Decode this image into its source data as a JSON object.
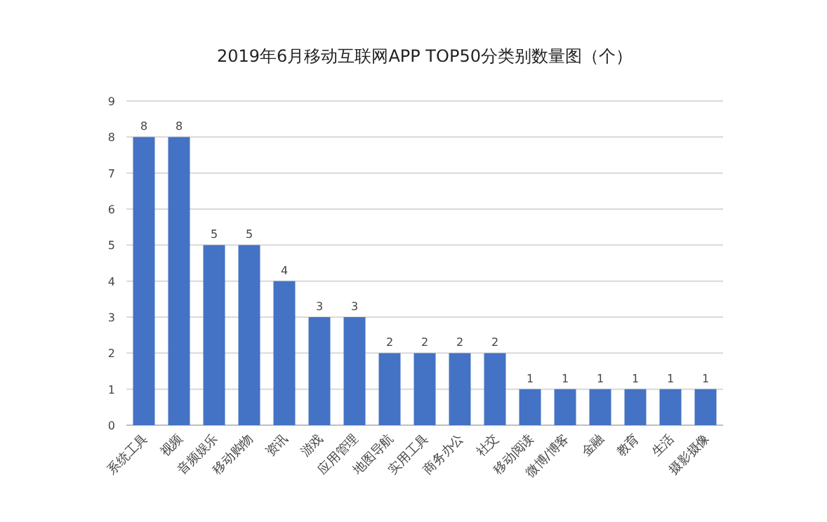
{
  "chart_data": {
    "type": "bar",
    "title": "2019年6月移动互联网APP TOP50分类别数量图（个）",
    "categories": [
      "系统工具",
      "视频",
      "音频娱乐",
      "移动购物",
      "资讯",
      "游戏",
      "应用管理",
      "地图导航",
      "实用工具",
      "商务办公",
      "社交",
      "移动阅读",
      "微博/博客",
      "金融",
      "教育",
      "生活",
      "摄影摄像"
    ],
    "values": [
      8,
      8,
      5,
      5,
      4,
      3,
      3,
      2,
      2,
      2,
      2,
      1,
      1,
      1,
      1,
      1,
      1
    ],
    "color": "#4472c4",
    "ylim": [
      0,
      9
    ],
    "yticks": [
      0,
      1,
      2,
      3,
      4,
      5,
      6,
      7,
      8,
      9
    ],
    "grid": "y",
    "data_labels": true
  }
}
